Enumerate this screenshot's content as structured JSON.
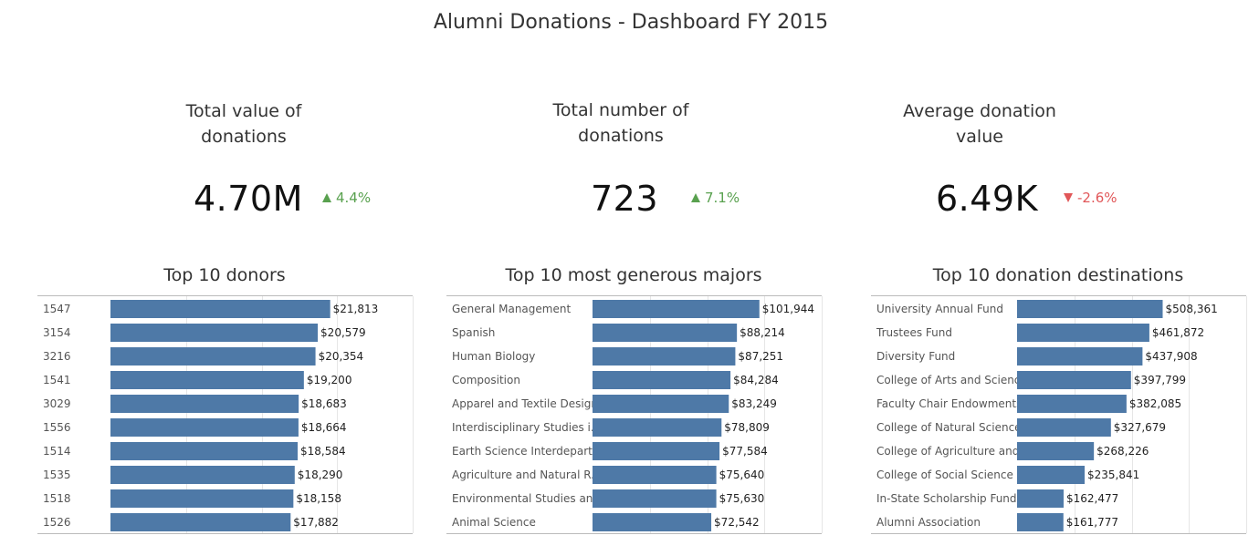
{
  "title": "Alumni Donations - Dashboard FY 2015",
  "colors": {
    "bar": "#4e79a7",
    "up": "#59a14f",
    "down": "#e15759",
    "grid": "#e6e6e6",
    "axis": "#bbbbbb"
  },
  "kpis": [
    {
      "label": "Total value of\ndonations",
      "value": "4.70M",
      "change": "4.4%",
      "direction": "up",
      "arrow_icon": "triangle-up-icon"
    },
    {
      "label": "Total number of\ndonations",
      "value": "723",
      "change": "7.1%",
      "direction": "up",
      "arrow_icon": "triangle-up-icon"
    },
    {
      "label": "Average donation\nvalue",
      "value": "6.49K",
      "change": "-2.6%",
      "direction": "down",
      "arrow_icon": "triangle-down-icon"
    }
  ],
  "chart_data": [
    {
      "type": "bar",
      "orientation": "horizontal",
      "title": "Top 10 donors",
      "categories": [
        "1547",
        "3154",
        "3216",
        "1541",
        "3029",
        "1556",
        "1514",
        "1535",
        "1518",
        "1526"
      ],
      "values": [
        21813,
        20579,
        20354,
        19200,
        18683,
        18664,
        18584,
        18290,
        18158,
        17882
      ],
      "labels": [
        "$21,813",
        "$20,579",
        "$20,354",
        "$19,200",
        "$18,683",
        "$18,664",
        "$18,584",
        "$18,290",
        "$18,158",
        "$17,882"
      ],
      "xlim": [
        0,
        30000
      ],
      "grid": true
    },
    {
      "type": "bar",
      "orientation": "horizontal",
      "title": "Top 10 most generous majors",
      "categories": [
        "General Management",
        "Spanish",
        "Human Biology",
        "Composition",
        "Apparel and Textile Design",
        "Interdisciplinary Studies i..",
        "Earth Science Interdepart..",
        "Agriculture and Natural R..",
        "Environmental Studies an..",
        "Animal Science"
      ],
      "values": [
        101944,
        88214,
        87251,
        84284,
        83249,
        78809,
        77584,
        75640,
        75630,
        72542
      ],
      "labels": [
        "$101,944",
        "$88,214",
        "$87,251",
        "$84,284",
        "$83,249",
        "$78,809",
        "$77,584",
        "$75,640",
        "$75,630",
        "$72,542"
      ],
      "xlim": [
        0,
        140000
      ],
      "grid": true
    },
    {
      "type": "bar",
      "orientation": "horizontal",
      "title": "Top 10 donation destinations",
      "categories": [
        "University Annual Fund",
        "Trustees Fund",
        "Diversity Fund",
        "College of Arts and Scienc..",
        "Faculty Chair Endowments",
        "College of Natural Science",
        "College of Agriculture and..",
        "College of Social Science",
        "In-State Scholarship Fund",
        "Alumni Association"
      ],
      "values": [
        508361,
        461872,
        437908,
        397799,
        382085,
        327679,
        268226,
        235841,
        162477,
        161777
      ],
      "labels": [
        "$508,361",
        "$461,872",
        "$437,908",
        "$397,799",
        "$382,085",
        "$327,679",
        "$268,226",
        "$235,841",
        "$162,477",
        "$161,777"
      ],
      "xlim": [
        0,
        800000
      ],
      "grid": true
    }
  ]
}
